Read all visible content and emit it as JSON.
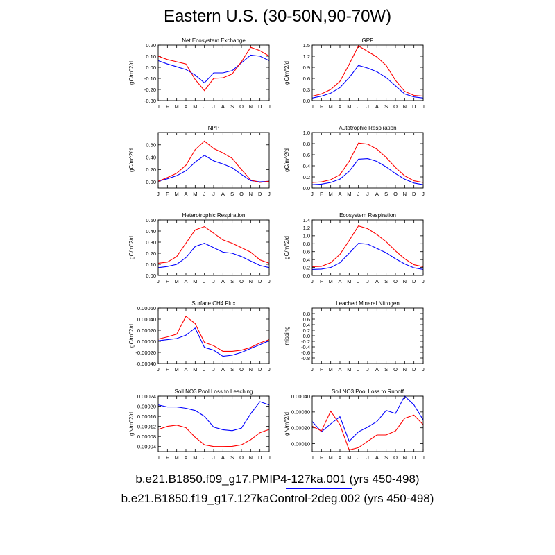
{
  "title": "Eastern U.S. (30-50N,90-70W)",
  "legend": [
    {
      "label": "b.e21.B1850.f09_g17.PMIP4-127ka.001 (yrs 450-498)",
      "color": "#0000ff"
    },
    {
      "label": "b.e21.B1850.f19_g17.127kaControl-2deg.002 (yrs 450-498)",
      "color": "#ff0000"
    }
  ],
  "chart_data": [
    {
      "type": "line",
      "title": "Net Ecosystem Exchange",
      "ylabel": "gC/m^2/d",
      "categories": [
        "J",
        "F",
        "M",
        "A",
        "M",
        "J",
        "J",
        "A",
        "S",
        "O",
        "N",
        "D",
        "J"
      ],
      "ylim": [
        -0.3,
        0.2
      ],
      "yticks": [
        -0.3,
        -0.2,
        -0.1,
        0.0,
        0.1,
        0.2
      ],
      "yticklabels": [
        "-0.30",
        "-0.20",
        "-0.10",
        "0.00",
        "0.10",
        "0.20"
      ],
      "series": [
        {
          "color": "#0000ff",
          "values": [
            0.06,
            0.03,
            0.005,
            -0.02,
            -0.07,
            -0.14,
            -0.05,
            -0.05,
            -0.03,
            0.04,
            0.11,
            0.1,
            0.06
          ]
        },
        {
          "color": "#ff0000",
          "values": [
            0.1,
            0.07,
            0.05,
            0.03,
            -0.11,
            -0.21,
            -0.1,
            -0.095,
            -0.06,
            0.05,
            0.18,
            0.15,
            0.1
          ]
        }
      ]
    },
    {
      "type": "line",
      "title": "GPP",
      "ylabel": "gC/m^2/d",
      "categories": [
        "J",
        "F",
        "M",
        "A",
        "M",
        "J",
        "J",
        "A",
        "S",
        "O",
        "N",
        "D",
        "J"
      ],
      "ylim": [
        0.0,
        1.5
      ],
      "yticks": [
        0.0,
        0.3,
        0.6,
        0.9,
        1.2,
        1.5
      ],
      "yticklabels": [
        "0.0",
        "0.3",
        "0.6",
        "0.9",
        "1.2",
        "1.5"
      ],
      "series": [
        {
          "color": "#0000ff",
          "values": [
            0.07,
            0.12,
            0.2,
            0.35,
            0.62,
            0.95,
            0.88,
            0.78,
            0.62,
            0.4,
            0.18,
            0.1,
            0.07
          ]
        },
        {
          "color": "#ff0000",
          "values": [
            0.12,
            0.18,
            0.3,
            0.52,
            0.98,
            1.48,
            1.33,
            1.18,
            0.95,
            0.55,
            0.25,
            0.14,
            0.12
          ]
        }
      ]
    },
    {
      "type": "line",
      "title": "NPP",
      "ylabel": "gC/m^2/d",
      "categories": [
        "J",
        "F",
        "M",
        "A",
        "M",
        "J",
        "J",
        "A",
        "S",
        "O",
        "N",
        "D",
        "J"
      ],
      "ylim": [
        -0.1,
        0.8
      ],
      "yticks": [
        0.0,
        0.2,
        0.4,
        0.6
      ],
      "yticklabels": [
        "0.00",
        "0.20",
        "0.40",
        "0.60"
      ],
      "series": [
        {
          "color": "#0000ff",
          "values": [
            0.01,
            0.05,
            0.1,
            0.18,
            0.32,
            0.43,
            0.34,
            0.29,
            0.23,
            0.12,
            0.02,
            0.0,
            0.01
          ]
        },
        {
          "color": "#ff0000",
          "values": [
            0.01,
            0.07,
            0.14,
            0.27,
            0.52,
            0.66,
            0.54,
            0.47,
            0.38,
            0.2,
            0.03,
            -0.01,
            0.01
          ]
        }
      ]
    },
    {
      "type": "line",
      "title": "Autotrophic Respiration",
      "ylabel": "gC/m^2/d",
      "categories": [
        "J",
        "F",
        "M",
        "A",
        "M",
        "J",
        "J",
        "A",
        "S",
        "O",
        "N",
        "D",
        "J"
      ],
      "ylim": [
        0.0,
        1.0
      ],
      "yticks": [
        0.0,
        0.2,
        0.4,
        0.6,
        0.8,
        1.0
      ],
      "yticklabels": [
        "0.0",
        "0.2",
        "0.4",
        "0.6",
        "0.8",
        "1.0"
      ],
      "series": [
        {
          "color": "#0000ff",
          "values": [
            0.06,
            0.07,
            0.1,
            0.16,
            0.3,
            0.52,
            0.53,
            0.48,
            0.38,
            0.26,
            0.16,
            0.09,
            0.06
          ]
        },
        {
          "color": "#ff0000",
          "values": [
            0.1,
            0.11,
            0.15,
            0.24,
            0.48,
            0.81,
            0.79,
            0.7,
            0.55,
            0.37,
            0.22,
            0.13,
            0.1
          ]
        }
      ]
    },
    {
      "type": "line",
      "title": "Heterotrophic Respiration",
      "ylabel": "gC/m^2/d",
      "categories": [
        "J",
        "F",
        "M",
        "A",
        "M",
        "J",
        "J",
        "A",
        "S",
        "O",
        "N",
        "D",
        "J"
      ],
      "ylim": [
        0.0,
        0.5
      ],
      "yticks": [
        0.0,
        0.1,
        0.2,
        0.3,
        0.4,
        0.5
      ],
      "yticklabels": [
        "0.00",
        "0.10",
        "0.20",
        "0.30",
        "0.40",
        "0.50"
      ],
      "series": [
        {
          "color": "#0000ff",
          "values": [
            0.07,
            0.08,
            0.1,
            0.16,
            0.26,
            0.29,
            0.25,
            0.21,
            0.2,
            0.17,
            0.13,
            0.09,
            0.07
          ]
        },
        {
          "color": "#ff0000",
          "values": [
            0.11,
            0.12,
            0.17,
            0.29,
            0.41,
            0.44,
            0.38,
            0.32,
            0.29,
            0.25,
            0.21,
            0.14,
            0.11
          ]
        }
      ]
    },
    {
      "type": "line",
      "title": "Ecosystem Respiration",
      "ylabel": "gC/m^2/d",
      "categories": [
        "J",
        "F",
        "M",
        "A",
        "M",
        "J",
        "J",
        "A",
        "S",
        "O",
        "N",
        "D",
        "J"
      ],
      "ylim": [
        0.0,
        1.4
      ],
      "yticks": [
        0.0,
        0.2,
        0.4,
        0.6,
        0.8,
        1.0,
        1.2,
        1.4
      ],
      "yticklabels": [
        "0.0",
        "0.2",
        "0.4",
        "0.6",
        "0.8",
        "1.0",
        "1.2",
        "1.4"
      ],
      "series": [
        {
          "color": "#0000ff",
          "values": [
            0.15,
            0.16,
            0.2,
            0.32,
            0.56,
            0.81,
            0.79,
            0.68,
            0.57,
            0.42,
            0.29,
            0.19,
            0.15
          ]
        },
        {
          "color": "#ff0000",
          "values": [
            0.22,
            0.23,
            0.32,
            0.53,
            0.88,
            1.25,
            1.18,
            1.03,
            0.85,
            0.62,
            0.42,
            0.27,
            0.22
          ]
        }
      ]
    },
    {
      "type": "line",
      "title": "Surface CH4 Flux",
      "ylabel": "gC/m^2/d",
      "categories": [
        "J",
        "F",
        "M",
        "A",
        "M",
        "J",
        "J",
        "A",
        "S",
        "O",
        "N",
        "D",
        "J"
      ],
      "ylim": [
        -0.0004,
        0.0006
      ],
      "yticks": [
        -0.0004,
        -0.0002,
        0.0,
        0.0002,
        0.0004,
        0.0006
      ],
      "yticklabels": [
        "-0.00040",
        "-0.00020",
        "0.00000",
        "0.00020",
        "0.00040",
        "0.00060"
      ],
      "series": [
        {
          "color": "#0000ff",
          "values": [
            1e-05,
            3e-05,
            5e-05,
            0.00011,
            0.00024,
            -0.00011,
            -0.00016,
            -0.00027,
            -0.00025,
            -0.0002,
            -0.00013,
            -6e-05,
            1e-05
          ]
        },
        {
          "color": "#ff0000",
          "values": [
            4e-05,
            8e-05,
            0.00013,
            0.00045,
            0.00032,
            -2e-05,
            -8e-05,
            -0.00018,
            -0.00018,
            -0.00016,
            -0.00011,
            -3e-05,
            3e-05
          ]
        }
      ]
    },
    {
      "type": "line",
      "title": "Leached Mineral Nitrogen",
      "ylabel": "missing",
      "categories": [
        "J",
        "F",
        "M",
        "A",
        "M",
        "J",
        "J",
        "A",
        "S",
        "O",
        "N",
        "D",
        "J"
      ],
      "ylim": [
        -1.0,
        1.0
      ],
      "yticks": [
        -0.8,
        -0.6,
        -0.4,
        -0.2,
        0.0,
        0.2,
        0.4,
        0.6,
        0.8
      ],
      "yticklabels": [
        "-0.8",
        "-0.6",
        "-0.4",
        "-0.2",
        "0.0",
        "0.2",
        "0.4",
        "0.6",
        "0.8"
      ],
      "series": []
    },
    {
      "type": "line",
      "title": "Soil NO3 Pool Loss to Leaching",
      "ylabel": "gN/m^2/d",
      "categories": [
        "J",
        "F",
        "M",
        "A",
        "M",
        "J",
        "J",
        "A",
        "S",
        "O",
        "N",
        "D",
        "J"
      ],
      "ylim": [
        2e-05,
        0.00024
      ],
      "yticks": [
        4e-05,
        8e-05,
        0.00012,
        0.00016,
        0.0002,
        0.00024
      ],
      "yticklabels": [
        "0.00004",
        "0.00008",
        "0.00012",
        "0.00016",
        "0.00020",
        "0.00024"
      ],
      "series": [
        {
          "color": "#0000ff",
          "values": [
            0.000205,
            0.000197,
            0.000197,
            0.000192,
            0.000183,
            0.00016,
            0.000117,
            0.000107,
            0.000103,
            0.000113,
            0.00017,
            0.000218,
            0.000205
          ]
        },
        {
          "color": "#ff0000",
          "values": [
            0.000108,
            0.00012,
            0.000125,
            0.000115,
            7.7e-05,
            4.7e-05,
            4e-05,
            4e-05,
            4.1e-05,
            4.7e-05,
            6.7e-05,
            9.5e-05,
            0.000108
          ]
        }
      ]
    },
    {
      "type": "line",
      "title": "Soil NO3 Pool Loss to Runoff",
      "ylabel": "gN/m^2/d",
      "categories": [
        "J",
        "F",
        "M",
        "A",
        "M",
        "J",
        "J",
        "A",
        "S",
        "O",
        "N",
        "D",
        "J"
      ],
      "ylim": [
        5e-05,
        0.0004
      ],
      "yticks": [
        0.0001,
        0.0002,
        0.0003,
        0.0004
      ],
      "yticklabels": [
        "0.00010",
        "0.00020",
        "0.00030",
        "0.00040"
      ],
      "series": [
        {
          "color": "#0000ff",
          "values": [
            0.00024,
            0.000175,
            0.000225,
            0.00027,
            0.000115,
            0.000175,
            0.000205,
            0.00024,
            0.00031,
            0.00029,
            0.0004,
            0.000345,
            0.00025
          ]
        },
        {
          "color": "#ff0000",
          "values": [
            0.00021,
            0.00018,
            0.000305,
            0.00022,
            6e-05,
            7.5e-05,
            0.000115,
            0.000155,
            0.000155,
            0.00018,
            0.00026,
            0.00028,
            0.00022
          ]
        }
      ]
    }
  ]
}
